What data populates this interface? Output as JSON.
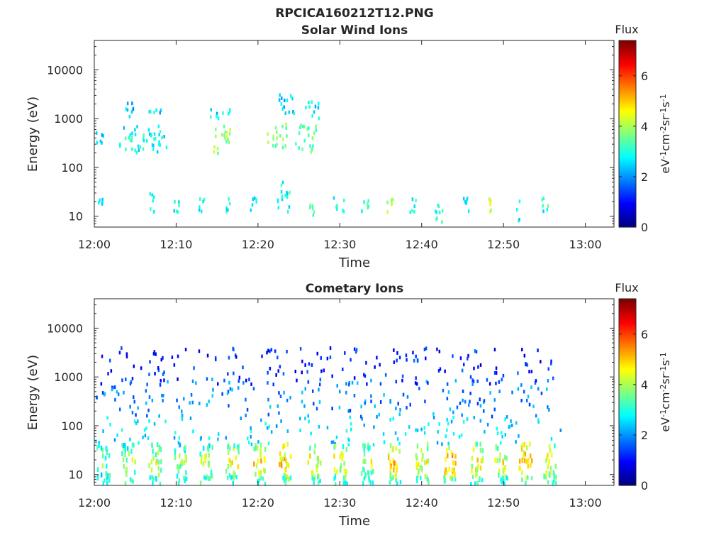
{
  "figure_title": "RPCICA160212T12.PNG",
  "colorbar": {
    "title": "Flux",
    "label_parts": [
      "eV",
      "-1",
      "cm",
      "-2",
      "sr",
      "-1",
      "s",
      "-1"
    ],
    "ticks": [
      "0",
      "2",
      "4",
      "6"
    ],
    "range": [
      0,
      7.4
    ],
    "colormap": "jet",
    "colors": [
      "#00007f",
      "#0000ff",
      "#007fff",
      "#00ffff",
      "#7fff7f",
      "#ffff00",
      "#ff7f00",
      "#ff0000",
      "#7f0000"
    ]
  },
  "chart_data": [
    {
      "type": "heatmap",
      "title": "Solar Wind Ions",
      "xlabel": "Time",
      "ylabel": "Energy (eV)",
      "x_ticks": [
        "12:00",
        "12:10",
        "12:20",
        "12:30",
        "12:40",
        "12:50",
        "13:00"
      ],
      "xlim_minutes": [
        0,
        63.5
      ],
      "y_ticks": [
        "10",
        "100",
        "1000",
        "10000"
      ],
      "y_scale": "log",
      "ylim": [
        6,
        40000
      ],
      "grid": false,
      "colorbar": "right",
      "clusters": [
        {
          "t": [
            0,
            1
          ],
          "e": [
            280,
            550
          ],
          "flux": 2.3
        },
        {
          "t": [
            0.2,
            1
          ],
          "e": [
            17,
            23
          ],
          "flux": 2.8
        },
        {
          "t": [
            3.5,
            4.7
          ],
          "e": [
            1000,
            2800
          ],
          "flux": 2.4
        },
        {
          "t": [
            3,
            9
          ],
          "e": [
            200,
            700
          ],
          "flux": 2.8
        },
        {
          "t": [
            5.8,
            8.2
          ],
          "e": [
            1200,
            1700
          ],
          "flux": 2.6
        },
        {
          "t": [
            6.5,
            7.2
          ],
          "e": [
            12,
            30
          ],
          "flux": 2.8
        },
        {
          "t": [
            9.5,
            10.3
          ],
          "e": [
            12,
            22
          ],
          "flux": 2.8
        },
        {
          "t": [
            12.5,
            13.5
          ],
          "e": [
            12,
            25
          ],
          "flux": 2.9
        },
        {
          "t": [
            14.5,
            16.5
          ],
          "e": [
            180,
            800
          ],
          "flux": 3.8
        },
        {
          "t": [
            13.8,
            16.5
          ],
          "e": [
            1000,
            1700
          ],
          "flux": 2.6
        },
        {
          "t": [
            16,
            16.8
          ],
          "e": [
            12,
            25
          ],
          "flux": 3.0
        },
        {
          "t": [
            19,
            20
          ],
          "e": [
            12,
            25
          ],
          "flux": 2.9
        },
        {
          "t": [
            21,
            23.5
          ],
          "e": [
            250,
            800
          ],
          "flux": 3.6
        },
        {
          "t": [
            22.5,
            24.5
          ],
          "e": [
            1000,
            3200
          ],
          "flux": 2.5
        },
        {
          "t": [
            22.3,
            23.8
          ],
          "e": [
            12,
            60
          ],
          "flux": 3.0
        },
        {
          "t": [
            24.5,
            27
          ],
          "e": [
            200,
            800
          ],
          "flux": 3.4
        },
        {
          "t": [
            25.5,
            27.5
          ],
          "e": [
            1000,
            2200
          ],
          "flux": 2.5
        },
        {
          "t": [
            26.2,
            26.8
          ],
          "e": [
            10,
            22
          ],
          "flux": 3.3
        },
        {
          "t": [
            29,
            30.5
          ],
          "e": [
            12,
            25
          ],
          "flux": 2.8
        },
        {
          "t": [
            32.5,
            33.5
          ],
          "e": [
            12,
            25
          ],
          "flux": 3.1
        },
        {
          "t": [
            35.5,
            36.5
          ],
          "e": [
            12,
            25
          ],
          "flux": 3.7
        },
        {
          "t": [
            38.5,
            39.5
          ],
          "e": [
            12,
            25
          ],
          "flux": 2.9
        },
        {
          "t": [
            41.5,
            42.5
          ],
          "e": [
            6,
            25
          ],
          "flux": 3.2
        },
        {
          "t": [
            45,
            45.7
          ],
          "e": [
            12,
            25
          ],
          "flux": 3.0
        },
        {
          "t": [
            48,
            48.5
          ],
          "e": [
            12,
            25
          ],
          "flux": 4.3
        },
        {
          "t": [
            51.5,
            52
          ],
          "e": [
            6,
            25
          ],
          "flux": 2.9
        },
        {
          "t": [
            54.5,
            55.5
          ],
          "e": [
            12,
            25
          ],
          "flux": 3.0
        }
      ]
    },
    {
      "type": "heatmap",
      "title": "Cometary Ions",
      "xlabel": "Time",
      "ylabel": "Energy (eV)",
      "x_ticks": [
        "12:00",
        "12:10",
        "12:20",
        "12:30",
        "12:40",
        "12:50",
        "13:00"
      ],
      "xlim_minutes": [
        0,
        63.5
      ],
      "y_ticks": [
        "10",
        "100",
        "1000",
        "10000"
      ],
      "y_scale": "log",
      "ylim": [
        6,
        40000
      ],
      "grid": false,
      "colorbar": "right",
      "bands": [
        0.2,
        3.3,
        6.5,
        9.6,
        12.8,
        16,
        19.2,
        22.5,
        26,
        29.2,
        32.5,
        35.8,
        39.2,
        42.5,
        45.8,
        48.8,
        51.8,
        54.8
      ],
      "band_flux": [
        4.5,
        4.8,
        5.0,
        4.6,
        4.9,
        5.2,
        5.6,
        5.8,
        5.4,
        5.3,
        5.1,
        5.9,
        5.4,
        6.2,
        5.4,
        5.3,
        6.0,
        5.4
      ],
      "clusters": [
        {
          "t": [
            0,
            57
          ],
          "e": [
            150,
            900
          ],
          "flux": 1.9
        },
        {
          "t": [
            0.5,
            56
          ],
          "e": [
            700,
            4000
          ],
          "flux": 1.2
        },
        {
          "t": [
            0,
            57
          ],
          "e": [
            40,
            150
          ],
          "flux": 2.5
        }
      ]
    }
  ]
}
